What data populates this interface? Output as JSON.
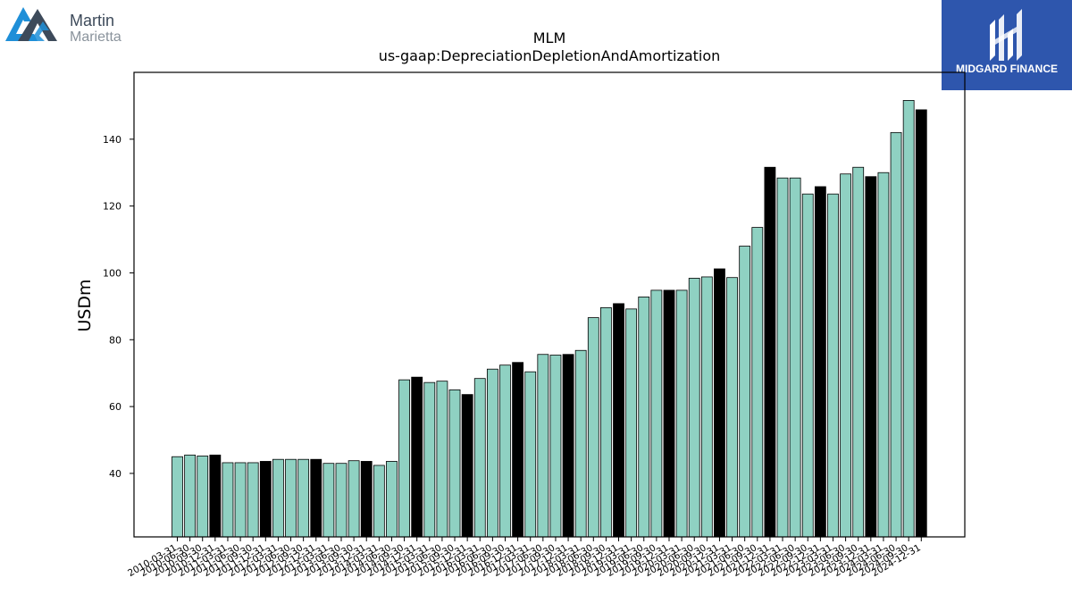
{
  "brand_left": {
    "line1": "Martin",
    "line2": "Marietta"
  },
  "brand_right": {
    "label": "MIDGARD FINANCE",
    "color": "#2e56ad"
  },
  "colors": {
    "bar_default": "#8fd1c2",
    "bar_highlight": "#000000",
    "edge": "#000000"
  },
  "chart_data": {
    "type": "bar",
    "title": "MLM",
    "subtitle": "us-gaap:DepreciationDepletionAndAmortization",
    "xlabel": "",
    "ylabel": "USDm",
    "ylim": [
      21,
      160
    ],
    "yticks": [
      40,
      60,
      80,
      100,
      120,
      140
    ],
    "grid": false,
    "categories": [
      "2010-03-31",
      "2010-06-30",
      "2010-09-30",
      "2010-12-31",
      "2011-03-31",
      "2011-06-30",
      "2011-09-30",
      "2011-12-31",
      "2012-03-31",
      "2012-06-30",
      "2012-09-30",
      "2012-12-31",
      "2013-03-31",
      "2013-06-30",
      "2013-09-30",
      "2013-12-31",
      "2014-03-31",
      "2014-06-30",
      "2014-09-30",
      "2014-12-31",
      "2015-03-31",
      "2015-06-30",
      "2015-09-30",
      "2015-12-31",
      "2016-03-31",
      "2016-06-30",
      "2016-09-30",
      "2016-12-31",
      "2017-03-31",
      "2017-06-30",
      "2017-09-30",
      "2017-12-31",
      "2018-03-31",
      "2018-06-30",
      "2018-09-30",
      "2018-12-31",
      "2019-03-31",
      "2019-06-30",
      "2019-09-30",
      "2019-12-31",
      "2020-03-31",
      "2020-06-30",
      "2020-09-30",
      "2020-12-31",
      "2021-03-31",
      "2021-06-30",
      "2021-09-30",
      "2021-12-31",
      "2022-03-31",
      "2022-06-30",
      "2022-09-30",
      "2022-12-31",
      "2023-03-31",
      "2023-06-30",
      "2023-09-30",
      "2023-12-31",
      "2024-03-31",
      "2024-06-30",
      "2024-09-30",
      "2024-12-31"
    ],
    "values": [
      45.0,
      45.5,
      45.2,
      45.5,
      43.2,
      43.2,
      43.2,
      43.6,
      44.2,
      44.2,
      44.2,
      44.2,
      43.0,
      43.0,
      43.8,
      43.6,
      42.4,
      43.6,
      68.0,
      68.8,
      67.2,
      67.6,
      65.0,
      63.6,
      68.4,
      71.2,
      72.4,
      73.2,
      70.4,
      75.6,
      75.4,
      75.6,
      76.8,
      86.6,
      89.6,
      90.8,
      89.2,
      92.8,
      94.8,
      94.8,
      94.8,
      98.4,
      98.8,
      101.2,
      98.6,
      108.0,
      113.6,
      131.6,
      128.4,
      128.4,
      123.6,
      125.8,
      123.6,
      129.6,
      131.6,
      128.8,
      130.0,
      142.0,
      151.6,
      148.8
    ],
    "highlight": [
      false,
      false,
      false,
      true,
      false,
      false,
      false,
      true,
      false,
      false,
      false,
      true,
      false,
      false,
      false,
      true,
      false,
      false,
      false,
      true,
      false,
      false,
      false,
      true,
      false,
      false,
      false,
      true,
      false,
      false,
      false,
      true,
      false,
      false,
      false,
      true,
      false,
      false,
      false,
      true,
      false,
      false,
      false,
      true,
      false,
      false,
      false,
      true,
      false,
      false,
      false,
      true,
      false,
      false,
      false,
      true,
      false,
      false,
      false,
      true
    ]
  }
}
